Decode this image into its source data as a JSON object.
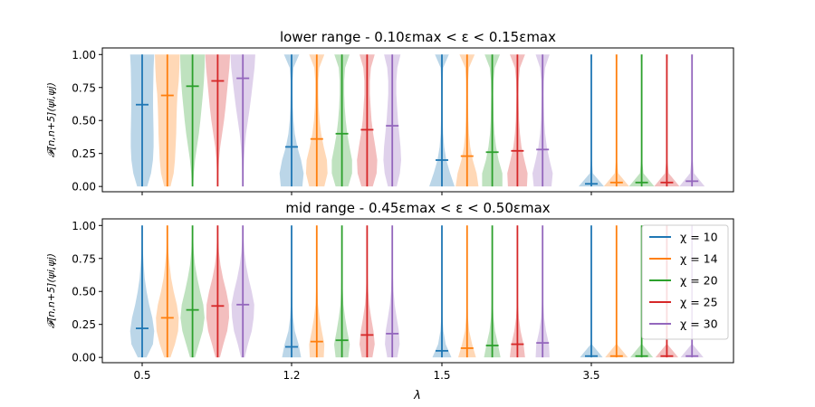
{
  "chart_data": {
    "type": "violin",
    "xlabel": "λ",
    "ylabel": "𝓕[n,n+5](ψi,ψj)",
    "ylim": [
      -0.04,
      1.05
    ],
    "yticks": [
      "0.00",
      "0.25",
      "0.50",
      "0.75",
      "1.00"
    ],
    "ytick_values": [
      0,
      0.25,
      0.5,
      0.75,
      1.0
    ],
    "lambda_groups": [
      "0.5",
      "1.2",
      "1.5",
      "3.5"
    ],
    "legend_position": "upper-right (bottom panel)",
    "legend": [
      {
        "label": "χ = 10",
        "color": "#1f77b4"
      },
      {
        "label": "χ = 14",
        "color": "#ff7f0e"
      },
      {
        "label": "χ = 20",
        "color": "#2ca02c"
      },
      {
        "label": "χ = 25",
        "color": "#d62728"
      },
      {
        "label": "χ = 30",
        "color": "#9467bd"
      }
    ],
    "panels": [
      {
        "title": "lower range - 0.10εmax < ε < 0.15εmax",
        "groups": [
          {
            "lambda": "0.5",
            "series": [
              {
                "chi": 10,
                "min": 0.0,
                "max": 1.0,
                "mean": 0.62,
                "profile": [
                  0.4,
                  0.7,
                  0.85,
                  0.9,
                  0.9,
                  0.88,
                  0.86,
                  0.86,
                  0.88,
                  0.9,
                  0.95
                ]
              },
              {
                "chi": 14,
                "min": 0.0,
                "max": 1.0,
                "mean": 0.69,
                "profile": [
                  0.25,
                  0.5,
                  0.6,
                  0.65,
                  0.7,
                  0.72,
                  0.75,
                  0.8,
                  0.9,
                  0.95,
                  0.98
                ]
              },
              {
                "chi": 20,
                "min": 0.0,
                "max": 1.0,
                "mean": 0.76,
                "profile": [
                  0.05,
                  0.1,
                  0.2,
                  0.35,
                  0.5,
                  0.62,
                  0.72,
                  0.82,
                  0.9,
                  0.95,
                  0.98
                ]
              },
              {
                "chi": 25,
                "min": 0.0,
                "max": 1.0,
                "mean": 0.8,
                "profile": [
                  0.03,
                  0.05,
                  0.1,
                  0.2,
                  0.35,
                  0.5,
                  0.62,
                  0.72,
                  0.82,
                  0.92,
                  0.98
                ]
              },
              {
                "chi": 30,
                "min": 0.0,
                "max": 1.0,
                "mean": 0.82,
                "profile": [
                  0.03,
                  0.05,
                  0.08,
                  0.15,
                  0.25,
                  0.4,
                  0.55,
                  0.68,
                  0.8,
                  0.92,
                  0.98
                ]
              }
            ]
          },
          {
            "lambda": "1.2",
            "series": [
              {
                "chi": 10,
                "min": 0.0,
                "max": 1.0,
                "mean": 0.3,
                "profile": [
                  0.85,
                  0.95,
                  0.75,
                  0.45,
                  0.25,
                  0.15,
                  0.1,
                  0.08,
                  0.08,
                  0.15,
                  0.6
                ]
              },
              {
                "chi": 14,
                "min": 0.0,
                "max": 1.0,
                "mean": 0.36,
                "profile": [
                  0.6,
                  0.85,
                  0.8,
                  0.55,
                  0.35,
                  0.22,
                  0.15,
                  0.12,
                  0.12,
                  0.2,
                  0.6
                ]
              },
              {
                "chi": 20,
                "min": 0.0,
                "max": 1.0,
                "mean": 0.4,
                "profile": [
                  0.5,
                  0.8,
                  0.8,
                  0.6,
                  0.42,
                  0.3,
                  0.22,
                  0.18,
                  0.18,
                  0.25,
                  0.6
                ]
              },
              {
                "chi": 25,
                "min": 0.0,
                "max": 1.0,
                "mean": 0.43,
                "profile": [
                  0.45,
                  0.75,
                  0.8,
                  0.65,
                  0.48,
                  0.35,
                  0.28,
                  0.22,
                  0.22,
                  0.3,
                  0.6
                ]
              },
              {
                "chi": 30,
                "min": 0.0,
                "max": 1.0,
                "mean": 0.46,
                "profile": [
                  0.35,
                  0.6,
                  0.7,
                  0.65,
                  0.55,
                  0.45,
                  0.38,
                  0.32,
                  0.32,
                  0.4,
                  0.65
                ]
              }
            ]
          },
          {
            "lambda": "1.5",
            "series": [
              {
                "chi": 10,
                "min": 0.0,
                "max": 1.0,
                "mean": 0.2,
                "profile": [
                  1.0,
                  0.65,
                  0.35,
                  0.18,
                  0.1,
                  0.07,
                  0.05,
                  0.05,
                  0.06,
                  0.1,
                  0.55
                ]
              },
              {
                "chi": 14,
                "min": 0.0,
                "max": 1.0,
                "mean": 0.23,
                "profile": [
                  0.9,
                  0.75,
                  0.45,
                  0.25,
                  0.15,
                  0.1,
                  0.08,
                  0.07,
                  0.08,
                  0.15,
                  0.6
                ]
              },
              {
                "chi": 20,
                "min": 0.0,
                "max": 1.0,
                "mean": 0.26,
                "profile": [
                  0.8,
                  0.8,
                  0.5,
                  0.3,
                  0.18,
                  0.12,
                  0.1,
                  0.08,
                  0.1,
                  0.2,
                  0.6
                ]
              },
              {
                "chi": 25,
                "min": 0.0,
                "max": 1.0,
                "mean": 0.27,
                "profile": [
                  0.75,
                  0.8,
                  0.55,
                  0.32,
                  0.2,
                  0.13,
                  0.1,
                  0.08,
                  0.1,
                  0.2,
                  0.6
                ]
              },
              {
                "chi": 30,
                "min": 0.0,
                "max": 1.0,
                "mean": 0.28,
                "profile": [
                  0.7,
                  0.8,
                  0.55,
                  0.33,
                  0.2,
                  0.13,
                  0.1,
                  0.08,
                  0.1,
                  0.2,
                  0.55
                ]
              }
            ]
          },
          {
            "lambda": "3.5",
            "series": [
              {
                "chi": 10,
                "min": 0.0,
                "max": 1.0,
                "mean": 0.02,
                "profile": [
                  1.0,
                  0.12,
                  0.04,
                  0.02,
                  0.02,
                  0.02,
                  0.02,
                  0.02,
                  0.02,
                  0.03,
                  0.08
                ]
              },
              {
                "chi": 14,
                "min": 0.0,
                "max": 1.0,
                "mean": 0.03,
                "profile": [
                  1.0,
                  0.14,
                  0.04,
                  0.02,
                  0.02,
                  0.02,
                  0.02,
                  0.02,
                  0.02,
                  0.03,
                  0.08
                ]
              },
              {
                "chi": 20,
                "min": 0.0,
                "max": 1.0,
                "mean": 0.03,
                "profile": [
                  1.0,
                  0.14,
                  0.04,
                  0.02,
                  0.02,
                  0.02,
                  0.02,
                  0.02,
                  0.02,
                  0.03,
                  0.08
                ]
              },
              {
                "chi": 25,
                "min": 0.0,
                "max": 1.0,
                "mean": 0.03,
                "profile": [
                  1.0,
                  0.15,
                  0.04,
                  0.02,
                  0.02,
                  0.02,
                  0.02,
                  0.02,
                  0.02,
                  0.03,
                  0.08
                ]
              },
              {
                "chi": 30,
                "min": 0.0,
                "max": 1.0,
                "mean": 0.04,
                "profile": [
                  1.0,
                  0.16,
                  0.05,
                  0.02,
                  0.02,
                  0.02,
                  0.02,
                  0.02,
                  0.02,
                  0.03,
                  0.08
                ]
              }
            ]
          }
        ]
      },
      {
        "title": "mid range - 0.45εmax < ε < 0.50εmax",
        "groups": [
          {
            "lambda": "0.5",
            "series": [
              {
                "chi": 10,
                "min": 0.0,
                "max": 1.0,
                "mean": 0.22,
                "profile": [
                  0.35,
                  0.85,
                  0.95,
                  0.8,
                  0.55,
                  0.35,
                  0.2,
                  0.12,
                  0.06,
                  0.03,
                  0.02
                ]
              },
              {
                "chi": 14,
                "min": 0.0,
                "max": 1.0,
                "mean": 0.3,
                "profile": [
                  0.25,
                  0.6,
                  0.85,
                  0.9,
                  0.75,
                  0.5,
                  0.3,
                  0.18,
                  0.08,
                  0.04,
                  0.02
                ]
              },
              {
                "chi": 20,
                "min": 0.0,
                "max": 1.0,
                "mean": 0.36,
                "profile": [
                  0.2,
                  0.5,
                  0.8,
                  0.95,
                  0.85,
                  0.6,
                  0.38,
                  0.2,
                  0.1,
                  0.05,
                  0.02
                ]
              },
              {
                "chi": 25,
                "min": 0.0,
                "max": 1.0,
                "mean": 0.39,
                "profile": [
                  0.18,
                  0.45,
                  0.75,
                  0.9,
                  0.88,
                  0.68,
                  0.42,
                  0.22,
                  0.1,
                  0.05,
                  0.02
                ]
              },
              {
                "chi": 30,
                "min": 0.0,
                "max": 1.0,
                "mean": 0.4,
                "profile": [
                  0.15,
                  0.4,
                  0.7,
                  0.85,
                  0.9,
                  0.7,
                  0.45,
                  0.25,
                  0.12,
                  0.05,
                  0.02
                ]
              }
            ]
          },
          {
            "lambda": "1.2",
            "series": [
              {
                "chi": 10,
                "min": 0.0,
                "max": 1.0,
                "mean": 0.08,
                "profile": [
                  0.75,
                  0.55,
                  0.25,
                  0.12,
                  0.06,
                  0.04,
                  0.03,
                  0.02,
                  0.02,
                  0.02,
                  0.02
                ]
              },
              {
                "chi": 14,
                "min": 0.0,
                "max": 1.0,
                "mean": 0.12,
                "profile": [
                  0.55,
                  0.6,
                  0.4,
                  0.22,
                  0.1,
                  0.06,
                  0.04,
                  0.03,
                  0.02,
                  0.02,
                  0.02
                ]
              },
              {
                "chi": 20,
                "min": 0.0,
                "max": 1.0,
                "mean": 0.13,
                "profile": [
                  0.5,
                  0.62,
                  0.42,
                  0.25,
                  0.12,
                  0.07,
                  0.04,
                  0.03,
                  0.02,
                  0.02,
                  0.02
                ]
              },
              {
                "chi": 25,
                "min": 0.0,
                "max": 1.0,
                "mean": 0.17,
                "profile": [
                  0.42,
                  0.6,
                  0.5,
                  0.32,
                  0.17,
                  0.09,
                  0.05,
                  0.03,
                  0.02,
                  0.02,
                  0.02
                ]
              },
              {
                "chi": 30,
                "min": 0.0,
                "max": 1.0,
                "mean": 0.18,
                "profile": [
                  0.4,
                  0.58,
                  0.52,
                  0.35,
                  0.19,
                  0.1,
                  0.06,
                  0.03,
                  0.02,
                  0.02,
                  0.02
                ]
              }
            ]
          },
          {
            "lambda": "1.5",
            "series": [
              {
                "chi": 10,
                "min": 0.0,
                "max": 1.0,
                "mean": 0.05,
                "profile": [
                  0.75,
                  0.3,
                  0.12,
                  0.05,
                  0.03,
                  0.02,
                  0.02,
                  0.02,
                  0.02,
                  0.02,
                  0.02
                ]
              },
              {
                "chi": 14,
                "min": 0.0,
                "max": 1.0,
                "mean": 0.07,
                "profile": [
                  0.7,
                  0.4,
                  0.17,
                  0.07,
                  0.04,
                  0.02,
                  0.02,
                  0.02,
                  0.02,
                  0.02,
                  0.02
                ]
              },
              {
                "chi": 20,
                "min": 0.0,
                "max": 1.0,
                "mean": 0.09,
                "profile": [
                  0.65,
                  0.45,
                  0.22,
                  0.1,
                  0.05,
                  0.03,
                  0.02,
                  0.02,
                  0.02,
                  0.02,
                  0.02
                ]
              },
              {
                "chi": 25,
                "min": 0.0,
                "max": 1.0,
                "mean": 0.1,
                "profile": [
                  0.6,
                  0.48,
                  0.25,
                  0.11,
                  0.05,
                  0.03,
                  0.02,
                  0.02,
                  0.02,
                  0.02,
                  0.02
                ]
              },
              {
                "chi": 30,
                "min": 0.0,
                "max": 1.0,
                "mean": 0.11,
                "profile": [
                  0.55,
                  0.5,
                  0.27,
                  0.12,
                  0.06,
                  0.03,
                  0.02,
                  0.02,
                  0.02,
                  0.02,
                  0.02
                ]
              }
            ]
          },
          {
            "lambda": "3.5",
            "series": [
              {
                "chi": 10,
                "min": 0.0,
                "max": 1.0,
                "mean": 0.01,
                "profile": [
                  0.9,
                  0.04,
                  0.02,
                  0.02,
                  0.02,
                  0.02,
                  0.02,
                  0.02,
                  0.02,
                  0.02,
                  0.02
                ]
              },
              {
                "chi": 14,
                "min": 0.0,
                "max": 1.0,
                "mean": 0.01,
                "profile": [
                  0.9,
                  0.04,
                  0.02,
                  0.02,
                  0.02,
                  0.02,
                  0.02,
                  0.02,
                  0.02,
                  0.02,
                  0.02
                ]
              },
              {
                "chi": 20,
                "min": 0.0,
                "max": 1.0,
                "mean": 0.01,
                "profile": [
                  0.9,
                  0.04,
                  0.02,
                  0.02,
                  0.02,
                  0.02,
                  0.02,
                  0.02,
                  0.02,
                  0.02,
                  0.02
                ]
              },
              {
                "chi": 25,
                "min": 0.0,
                "max": 1.0,
                "mean": 0.01,
                "profile": [
                  0.9,
                  0.04,
                  0.02,
                  0.02,
                  0.02,
                  0.02,
                  0.02,
                  0.02,
                  0.02,
                  0.02,
                  0.02
                ]
              },
              {
                "chi": 30,
                "min": 0.0,
                "max": 1.0,
                "mean": 0.01,
                "profile": [
                  0.9,
                  0.04,
                  0.02,
                  0.02,
                  0.02,
                  0.02,
                  0.02,
                  0.02,
                  0.02,
                  0.02,
                  0.02
                ]
              }
            ]
          }
        ]
      }
    ]
  }
}
